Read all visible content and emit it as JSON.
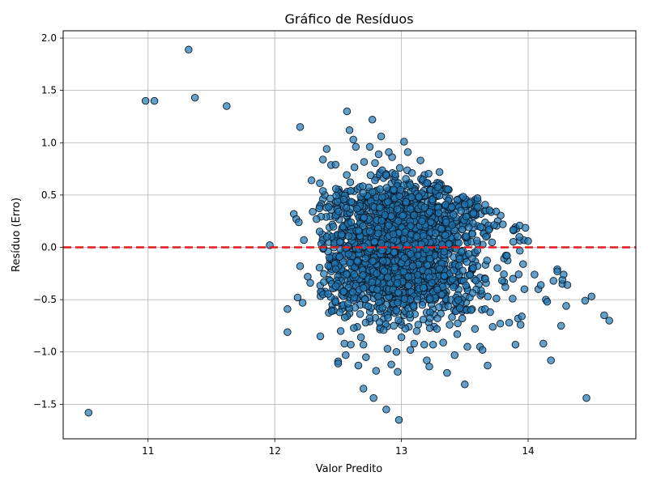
{
  "chart_data": {
    "type": "scatter",
    "title": "Gráfico de Resíduos",
    "xlabel": "Valor Predito",
    "ylabel": "Resíduo (Erro)",
    "xlim": [
      10.33,
      14.85
    ],
    "ylim": [
      -1.83,
      2.07
    ],
    "xticks": [
      11,
      12,
      13,
      14
    ],
    "yticks": [
      -1.5,
      -1.0,
      -0.5,
      0.0,
      0.5,
      1.0,
      1.5,
      2.0
    ],
    "grid": true,
    "reference_line": {
      "y": 0.0,
      "color": "#e41a1c",
      "style": "dashed"
    },
    "marker_color": "#1f77b4",
    "marker_edge": "#0b1c2c",
    "cluster_summary": {
      "x_range": [
        12.35,
        14.0
      ],
      "x_center": 13.0,
      "residual_range": [
        -0.8,
        0.9
      ],
      "approx_points": 2000
    },
    "points": [
      [
        10.53,
        -1.58
      ],
      [
        10.98,
        1.4
      ],
      [
        11.05,
        1.4
      ],
      [
        11.32,
        1.89
      ],
      [
        11.37,
        1.43
      ],
      [
        11.62,
        1.35
      ],
      [
        11.96,
        0.02
      ],
      [
        12.1,
        -0.59
      ],
      [
        12.1,
        -0.81
      ],
      [
        12.15,
        0.32
      ],
      [
        12.17,
        0.27
      ],
      [
        12.18,
        -0.48
      ],
      [
        12.19,
        0.24
      ],
      [
        12.2,
        1.15
      ],
      [
        12.2,
        -0.18
      ],
      [
        12.22,
        -0.53
      ],
      [
        12.23,
        0.07
      ],
      [
        12.26,
        -0.28
      ],
      [
        12.28,
        -0.34
      ],
      [
        12.29,
        0.64
      ],
      [
        12.3,
        0.34
      ],
      [
        12.33,
        0.27
      ],
      [
        12.36,
        -0.85
      ],
      [
        12.38,
        0.84
      ],
      [
        12.41,
        0.94
      ],
      [
        12.45,
        -0.61
      ],
      [
        12.48,
        0.79
      ],
      [
        12.5,
        -1.09
      ],
      [
        12.5,
        -1.11
      ],
      [
        12.52,
        -0.8
      ],
      [
        12.55,
        -0.92
      ],
      [
        12.56,
        -1.03
      ],
      [
        12.57,
        1.3
      ],
      [
        12.59,
        1.12
      ],
      [
        12.6,
        -0.93
      ],
      [
        12.62,
        1.03
      ],
      [
        12.64,
        0.96
      ],
      [
        12.66,
        -1.13
      ],
      [
        12.68,
        -0.86
      ],
      [
        12.7,
        -1.35
      ],
      [
        12.7,
        -0.93
      ],
      [
        12.72,
        -1.05
      ],
      [
        12.75,
        0.96
      ],
      [
        12.77,
        1.22
      ],
      [
        12.78,
        -1.44
      ],
      [
        12.8,
        -1.18
      ],
      [
        12.82,
        0.89
      ],
      [
        12.84,
        1.06
      ],
      [
        12.86,
        -0.79
      ],
      [
        12.88,
        -1.55
      ],
      [
        12.89,
        -0.97
      ],
      [
        12.9,
        0.91
      ],
      [
        12.92,
        -1.12
      ],
      [
        12.94,
        -0.75
      ],
      [
        12.96,
        -1.0
      ],
      [
        12.97,
        -1.19
      ],
      [
        12.98,
        -1.65
      ],
      [
        13.0,
        -0.86
      ],
      [
        13.02,
        1.01
      ],
      [
        13.05,
        0.91
      ],
      [
        13.07,
        -0.98
      ],
      [
        13.1,
        -0.92
      ],
      [
        13.12,
        -0.8
      ],
      [
        13.15,
        0.83
      ],
      [
        13.18,
        -0.93
      ],
      [
        13.2,
        -1.08
      ],
      [
        13.22,
        -1.14
      ],
      [
        13.25,
        -0.93
      ],
      [
        13.28,
        -0.78
      ],
      [
        13.3,
        0.72
      ],
      [
        13.33,
        -0.91
      ],
      [
        13.36,
        -1.2
      ],
      [
        13.38,
        -0.74
      ],
      [
        13.42,
        -1.03
      ],
      [
        13.44,
        -0.83
      ],
      [
        13.48,
        -0.68
      ],
      [
        13.5,
        -1.31
      ],
      [
        13.52,
        -0.95
      ],
      [
        13.55,
        -0.6
      ],
      [
        13.58,
        -0.78
      ],
      [
        13.6,
        0.47
      ],
      [
        13.62,
        -0.95
      ],
      [
        13.64,
        -0.98
      ],
      [
        13.66,
        -0.59
      ],
      [
        13.68,
        -1.13
      ],
      [
        13.7,
        -0.62
      ],
      [
        13.72,
        -0.76
      ],
      [
        13.75,
        -0.49
      ],
      [
        13.78,
        -0.73
      ],
      [
        13.8,
        0.22
      ],
      [
        13.82,
        -0.38
      ],
      [
        13.85,
        -0.72
      ],
      [
        13.88,
        -0.3
      ],
      [
        13.9,
        -0.93
      ],
      [
        13.92,
        -0.68
      ],
      [
        13.93,
        0.1
      ],
      [
        13.94,
        -0.74
      ],
      [
        13.95,
        -0.66
      ],
      [
        13.96,
        -0.16
      ],
      [
        13.97,
        -0.4
      ],
      [
        14.0,
        0.06
      ],
      [
        14.05,
        -0.26
      ],
      [
        14.08,
        -0.4
      ],
      [
        14.1,
        -0.36
      ],
      [
        14.12,
        -0.92
      ],
      [
        14.14,
        -0.5
      ],
      [
        14.15,
        -0.52
      ],
      [
        14.18,
        -1.08
      ],
      [
        14.2,
        -0.32
      ],
      [
        14.23,
        -0.21
      ],
      [
        14.23,
        -0.23
      ],
      [
        14.26,
        -0.75
      ],
      [
        14.27,
        -0.35
      ],
      [
        14.27,
        -0.31
      ],
      [
        14.28,
        -0.26
      ],
      [
        14.3,
        -0.56
      ],
      [
        14.31,
        -0.36
      ],
      [
        14.45,
        -0.51
      ],
      [
        14.46,
        -1.44
      ],
      [
        14.5,
        -0.47
      ],
      [
        14.6,
        -0.65
      ],
      [
        14.64,
        -0.7
      ]
    ]
  }
}
